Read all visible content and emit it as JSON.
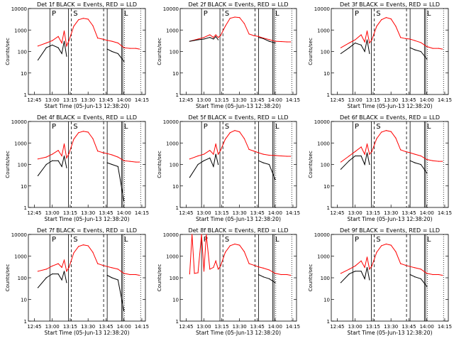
{
  "colors": {
    "events": "#000000",
    "lld": "#ff0000",
    "background": "#ffffff"
  },
  "shared": {
    "xlabel": "Start Time (05-Jun-13 12:38:20)",
    "ylabel": "Counts/sec",
    "x_ticks": [
      "12:45",
      "13:00",
      "13:15",
      "13:30",
      "13:45",
      "14:00",
      "14:15"
    ],
    "y_ticks": [
      "1",
      "10",
      "100",
      "1000",
      "10000"
    ],
    "region_labels": {
      "pre": "P",
      "saa": "S",
      "post": "L"
    }
  },
  "chart_data": [
    {
      "type": "line",
      "title": "Det 1f BLACK = Events, RED = LLD",
      "x": [
        "12:48",
        "12:55",
        "13:00",
        "13:05",
        "13:08",
        "13:10",
        "13:12",
        "13:14",
        "13:18",
        "13:22",
        "13:26",
        "13:30",
        "13:34",
        "13:38",
        "13:42",
        "13:46",
        "13:50",
        "13:55",
        "14:00",
        "14:05",
        "14:10",
        "14:13"
      ],
      "ylim": [
        1,
        10000
      ],
      "log_y": true,
      "series": [
        {
          "name": "LLD",
          "values": [
            180,
            250,
            320,
            500,
            250,
            900,
            180,
            320,
            1500,
            3000,
            3500,
            3200,
            1600,
            420,
            380,
            330,
            300,
            250,
            150,
            140,
            140,
            130
          ]
        },
        {
          "name": "Events",
          "values": [
            40,
            150,
            200,
            150,
            80,
            300,
            60,
            null,
            null,
            null,
            null,
            null,
            null,
            null,
            null,
            130,
            100,
            80,
            35,
            null,
            null,
            null
          ]
        }
      ]
    },
    {
      "type": "line",
      "title": "Det 2f BLACK = Events, RED = LLD",
      "x": [
        "12:48",
        "12:55",
        "13:00",
        "13:05",
        "13:08",
        "13:10",
        "13:12",
        "13:14",
        "13:18",
        "13:22",
        "13:26",
        "13:30",
        "13:34",
        "13:38",
        "13:42",
        "13:46",
        "13:50",
        "13:55",
        "14:00",
        "14:05",
        "14:10",
        "14:13"
      ],
      "ylim": [
        1,
        10000
      ],
      "log_y": true,
      "series": [
        {
          "name": "LLD",
          "values": [
            300,
            380,
            450,
            600,
            450,
            600,
            450,
            550,
            1500,
            3500,
            4000,
            3800,
            2000,
            650,
            550,
            500,
            420,
            360,
            300,
            290,
            280,
            280
          ]
        },
        {
          "name": "Events",
          "values": [
            300,
            350,
            380,
            450,
            380,
            500,
            350,
            null,
            null,
            null,
            null,
            null,
            null,
            null,
            null,
            450,
            400,
            300,
            250,
            null,
            null,
            null
          ]
        }
      ]
    },
    {
      "type": "line",
      "title": "Det 3f BLACK = Events, RED = LLD",
      "x": [
        "12:48",
        "12:55",
        "13:00",
        "13:05",
        "13:08",
        "13:10",
        "13:12",
        "13:14",
        "13:18",
        "13:22",
        "13:26",
        "13:30",
        "13:34",
        "13:38",
        "13:42",
        "13:46",
        "13:50",
        "13:55",
        "14:00",
        "14:05",
        "14:10",
        "14:13"
      ],
      "ylim": [
        1,
        10000
      ],
      "log_y": true,
      "series": [
        {
          "name": "LLD",
          "values": [
            150,
            250,
            350,
            600,
            280,
            900,
            250,
            350,
            1500,
            3000,
            3800,
            3300,
            1500,
            450,
            400,
            380,
            320,
            260,
            170,
            140,
            140,
            130
          ]
        },
        {
          "name": "Events",
          "values": [
            80,
            150,
            250,
            200,
            100,
            350,
            80,
            null,
            null,
            null,
            null,
            null,
            null,
            null,
            null,
            150,
            120,
            100,
            45,
            null,
            null,
            null
          ]
        }
      ]
    },
    {
      "type": "line",
      "title": "Det 4f BLACK = Events, RED = LLD",
      "x": [
        "12:48",
        "12:55",
        "13:00",
        "13:05",
        "13:08",
        "13:10",
        "13:12",
        "13:14",
        "13:18",
        "13:22",
        "13:26",
        "13:30",
        "13:34",
        "13:38",
        "13:42",
        "13:46",
        "13:50",
        "13:55",
        "14:00",
        "14:05",
        "14:10",
        "14:13"
      ],
      "ylim": [
        1,
        10000
      ],
      "log_y": true,
      "series": [
        {
          "name": "LLD",
          "values": [
            180,
            220,
            300,
            450,
            250,
            900,
            200,
            320,
            1500,
            3000,
            3500,
            3200,
            1600,
            420,
            360,
            320,
            280,
            220,
            150,
            140,
            130,
            130
          ]
        },
        {
          "name": "Events",
          "values": [
            30,
            100,
            150,
            150,
            80,
            250,
            70,
            null,
            null,
            null,
            null,
            null,
            null,
            null,
            null,
            120,
            100,
            80,
            2,
            null,
            null,
            null
          ]
        }
      ]
    },
    {
      "type": "line",
      "title": "Det 5f BLACK = Events, RED = LLD",
      "x": [
        "12:48",
        "12:55",
        "13:00",
        "13:05",
        "13:08",
        "13:10",
        "13:12",
        "13:14",
        "13:18",
        "13:22",
        "13:26",
        "13:30",
        "13:34",
        "13:38",
        "13:42",
        "13:46",
        "13:50",
        "13:55",
        "14:00",
        "14:05",
        "14:10",
        "14:13"
      ],
      "ylim": [
        1,
        10000
      ],
      "log_y": true,
      "series": [
        {
          "name": "LLD",
          "values": [
            180,
            250,
            300,
            450,
            300,
            900,
            300,
            450,
            1500,
            3000,
            3800,
            3300,
            1600,
            500,
            420,
            350,
            300,
            270,
            260,
            250,
            240,
            240
          ]
        },
        {
          "name": "Events",
          "values": [
            25,
            100,
            150,
            200,
            80,
            300,
            100,
            null,
            null,
            null,
            null,
            null,
            null,
            null,
            null,
            150,
            120,
            100,
            20,
            null,
            null,
            null
          ]
        }
      ]
    },
    {
      "type": "line",
      "title": "Det 6f BLACK = Events, RED = LLD",
      "x": [
        "12:48",
        "12:55",
        "13:00",
        "13:05",
        "13:08",
        "13:10",
        "13:12",
        "13:14",
        "13:18",
        "13:22",
        "13:26",
        "13:30",
        "13:34",
        "13:38",
        "13:42",
        "13:46",
        "13:50",
        "13:55",
        "14:00",
        "14:05",
        "14:10",
        "14:13"
      ],
      "ylim": [
        1,
        10000
      ],
      "log_y": true,
      "series": [
        {
          "name": "LLD",
          "values": [
            130,
            250,
            400,
            650,
            300,
            900,
            300,
            400,
            1600,
            3200,
            3800,
            3400,
            1700,
            480,
            400,
            350,
            300,
            250,
            170,
            150,
            140,
            140
          ]
        },
        {
          "name": "Events",
          "values": [
            60,
            150,
            250,
            250,
            100,
            350,
            100,
            null,
            null,
            null,
            null,
            null,
            null,
            null,
            null,
            150,
            120,
            100,
            40,
            null,
            null,
            null
          ]
        }
      ]
    },
    {
      "type": "line",
      "title": "Det 7f BLACK = Events, RED = LLD",
      "x": [
        "12:48",
        "12:55",
        "13:00",
        "13:05",
        "13:08",
        "13:10",
        "13:12",
        "13:14",
        "13:18",
        "13:22",
        "13:26",
        "13:30",
        "13:34",
        "13:38",
        "13:42",
        "13:46",
        "13:50",
        "13:55",
        "14:00",
        "14:05",
        "14:10",
        "14:13"
      ],
      "ylim": [
        1,
        10000
      ],
      "log_y": true,
      "series": [
        {
          "name": "LLD",
          "values": [
            200,
            250,
            350,
            450,
            300,
            650,
            200,
            300,
            1400,
            2800,
            3300,
            3000,
            1500,
            450,
            380,
            330,
            290,
            250,
            160,
            140,
            140,
            130
          ]
        },
        {
          "name": "Events",
          "values": [
            35,
            100,
            150,
            150,
            80,
            200,
            60,
            null,
            null,
            null,
            null,
            null,
            null,
            null,
            null,
            130,
            100,
            80,
            3,
            null,
            null,
            null
          ]
        }
      ]
    },
    {
      "type": "line",
      "title": "Det 8f BLACK = Events, RED = LLD",
      "x": [
        "12:48",
        "12:50",
        "12:52",
        "12:55",
        "12:58",
        "13:00",
        "13:02",
        "13:05",
        "13:08",
        "13:10",
        "13:12",
        "13:14",
        "13:18",
        "13:22",
        "13:26",
        "13:30",
        "13:34",
        "13:38",
        "13:42",
        "13:46",
        "13:50",
        "13:55",
        "14:00",
        "14:05",
        "14:10",
        "14:13"
      ],
      "ylim": [
        1,
        10000
      ],
      "log_y": true,
      "series": [
        {
          "name": "LLD",
          "values": [
            150,
            10000,
            160,
            170,
            10000,
            200,
            10000,
            250,
            300,
            600,
            250,
            350,
            1500,
            3000,
            3600,
            3200,
            1600,
            450,
            380,
            320,
            280,
            230,
            160,
            140,
            140,
            130
          ]
        },
        {
          "name": "Events",
          "values": [
            null,
            null,
            null,
            null,
            null,
            null,
            null,
            null,
            null,
            null,
            null,
            null,
            null,
            null,
            null,
            null,
            null,
            null,
            null,
            140,
            110,
            90,
            60,
            null,
            null,
            null
          ]
        }
      ]
    },
    {
      "type": "line",
      "title": "Det 9f BLACK = Events, RED = LLD",
      "x": [
        "12:48",
        "12:55",
        "13:00",
        "13:05",
        "13:08",
        "13:10",
        "13:12",
        "13:14",
        "13:18",
        "13:22",
        "13:26",
        "13:30",
        "13:34",
        "13:38",
        "13:42",
        "13:46",
        "13:50",
        "13:55",
        "14:00",
        "14:05",
        "14:10",
        "14:13"
      ],
      "ylim": [
        1,
        10000
      ],
      "log_y": true,
      "series": [
        {
          "name": "LLD",
          "values": [
            160,
            250,
            350,
            600,
            300,
            900,
            250,
            350,
            1500,
            3000,
            3600,
            3200,
            1600,
            450,
            380,
            330,
            290,
            250,
            160,
            140,
            140,
            130
          ]
        },
        {
          "name": "Events",
          "values": [
            60,
            150,
            200,
            200,
            90,
            300,
            80,
            null,
            null,
            null,
            null,
            null,
            null,
            null,
            null,
            140,
            110,
            90,
            40,
            null,
            null,
            null
          ]
        }
      ]
    }
  ]
}
